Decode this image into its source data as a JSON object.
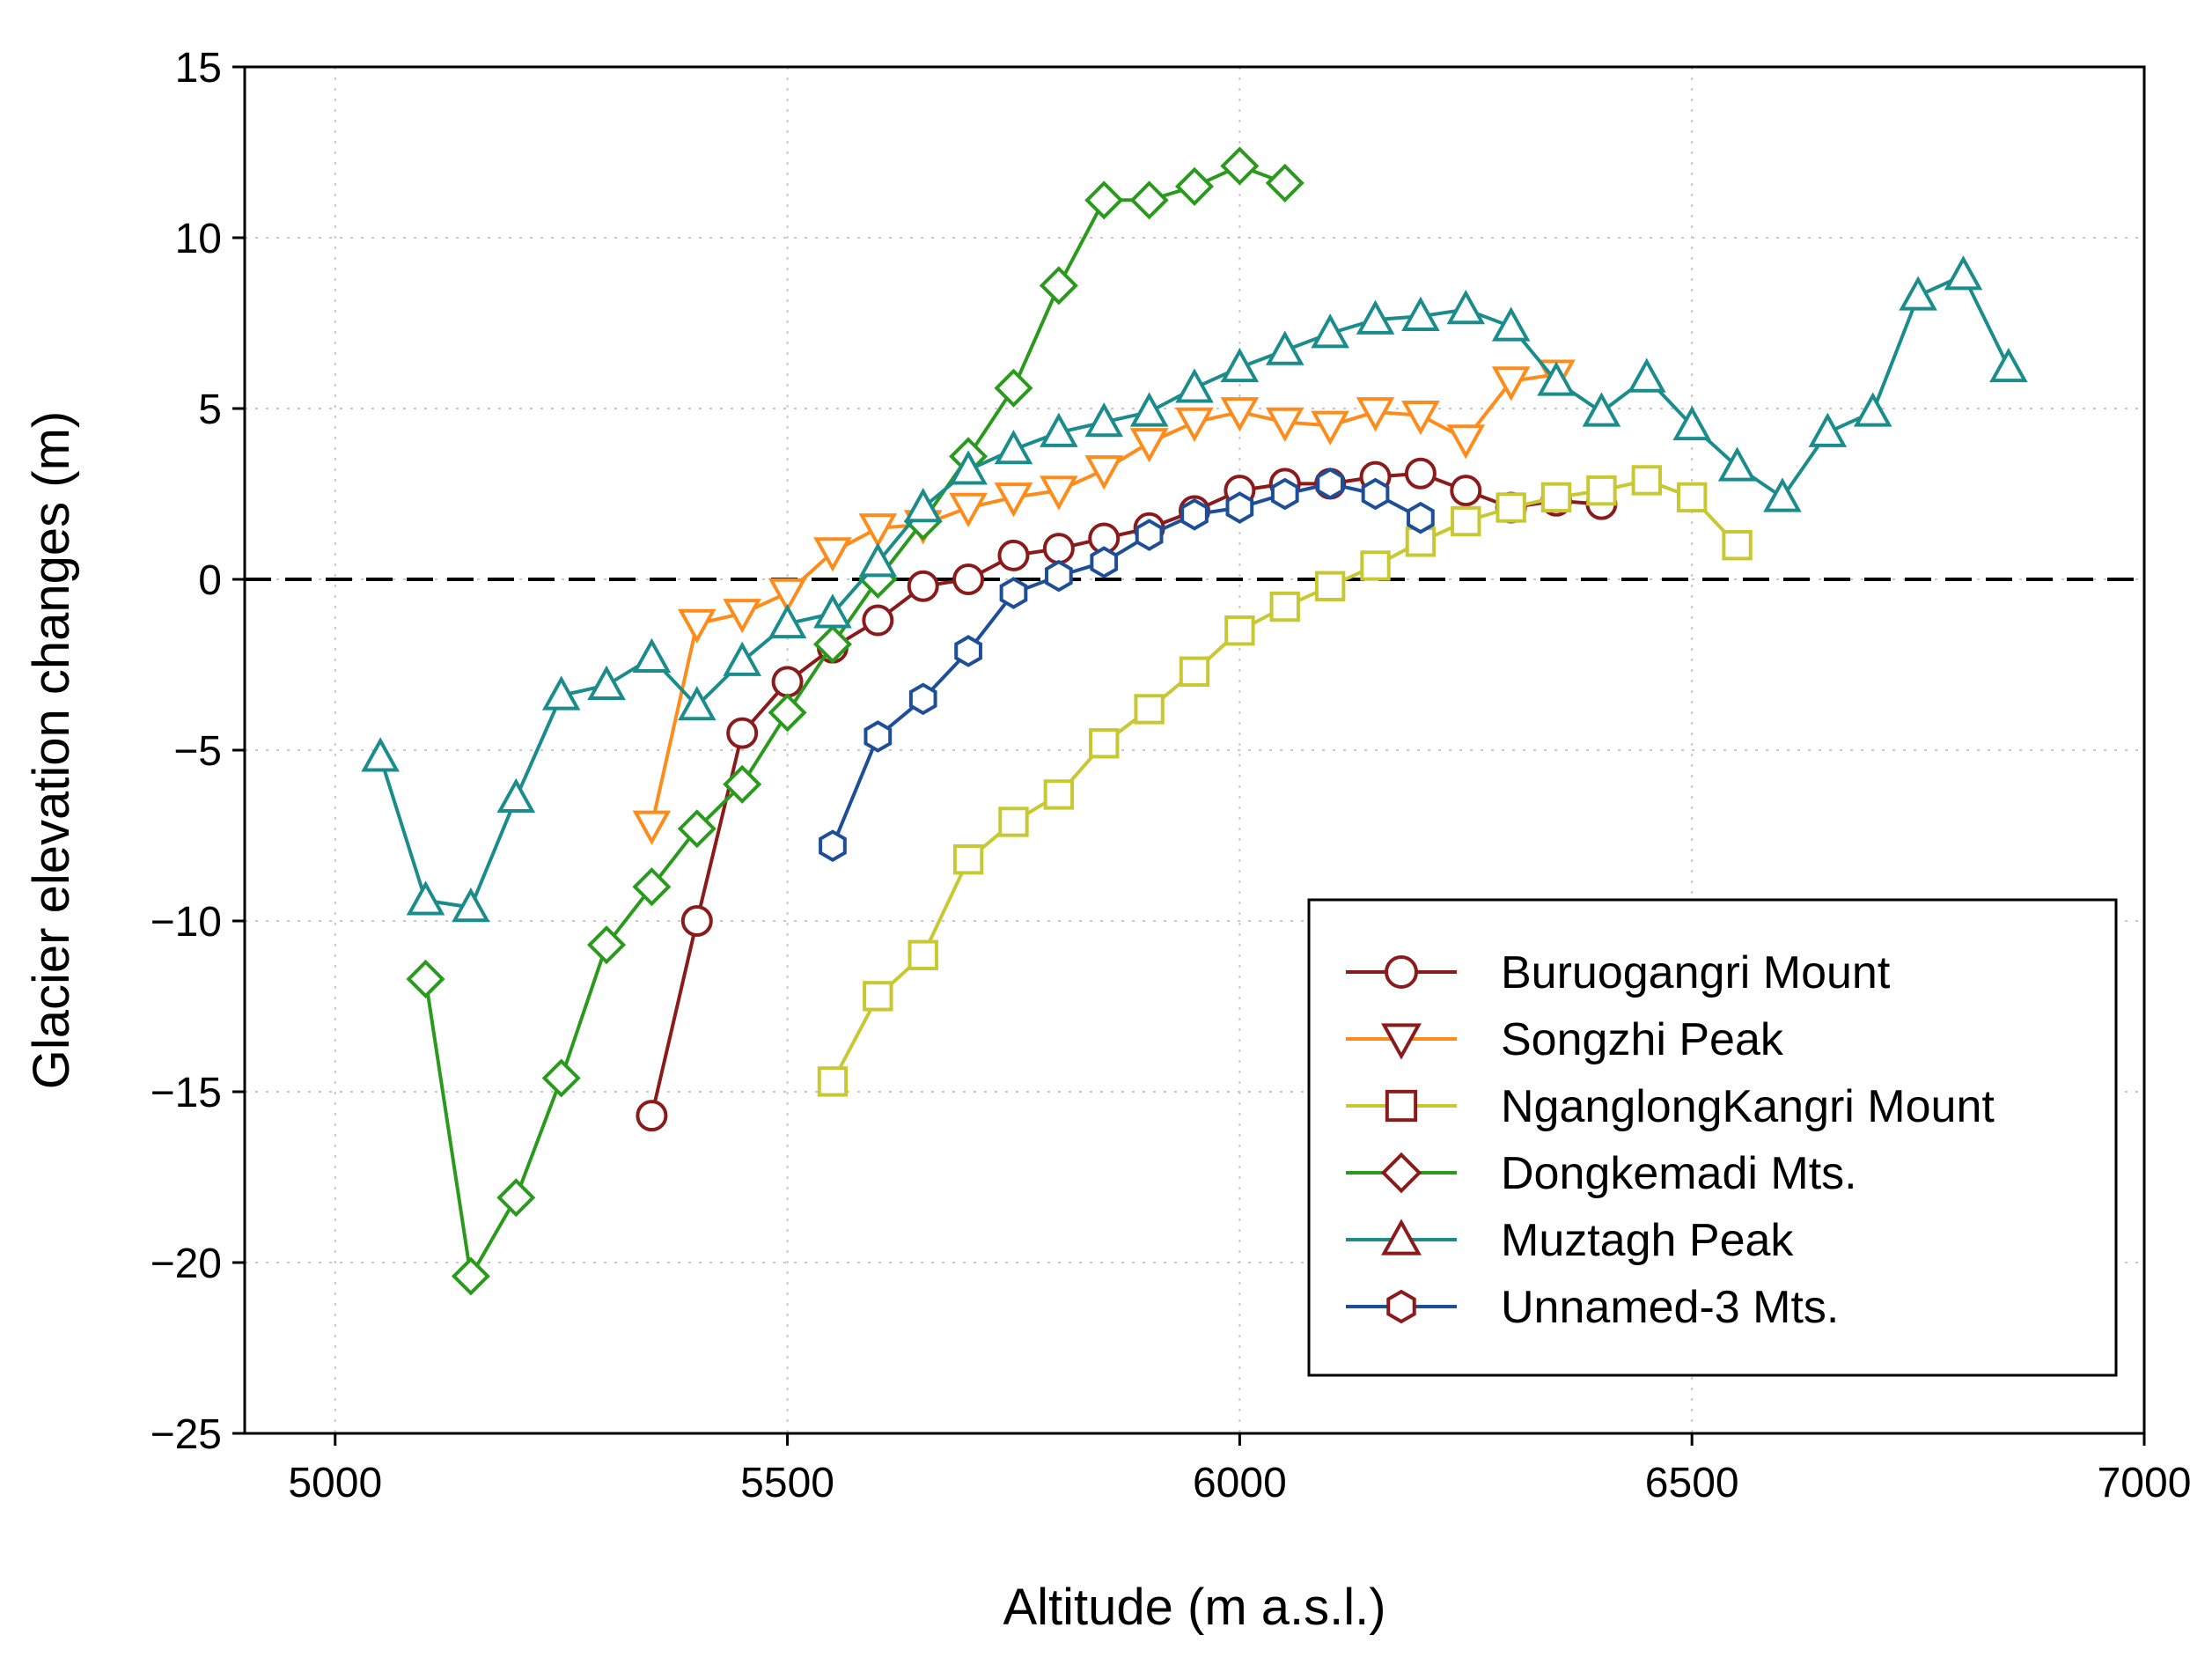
{
  "chart_data": {
    "type": "line",
    "title": "",
    "xlabel": "Altitude (m a.s.l.)",
    "ylabel": "Glacier elevation changes (m)",
    "xlim": [
      4900,
      7000
    ],
    "ylim": [
      -25,
      15
    ],
    "xticks": [
      5000,
      5500,
      6000,
      6500,
      7000
    ],
    "yticks": [
      -25,
      -20,
      -15,
      -10,
      -5,
      0,
      5,
      10,
      15
    ],
    "xtick_labels": [
      "5000",
      "5500",
      "6000",
      "6500",
      "7000"
    ],
    "ytick_labels": [
      "−25",
      "−20",
      "−15",
      "−10",
      "−5",
      "0",
      "5",
      "10",
      "15"
    ],
    "grid": true,
    "zero_line": "dashed",
    "legend_position": "bottom-right",
    "legend_marker_color": "#8b1a1a",
    "series": [
      {
        "name": "Buruogangri Mount",
        "color": "#8b1a1a",
        "marker": "circle",
        "x": [
          5350,
          5400,
          5450,
          5500,
          5550,
          5600,
          5650,
          5700,
          5750,
          5800,
          5850,
          5900,
          5950,
          6000,
          6050,
          6100,
          6150,
          6200,
          6250,
          6300,
          6350,
          6400
        ],
        "y": [
          -15.7,
          -10.0,
          -4.5,
          -3.0,
          -2.0,
          -1.2,
          -0.2,
          0.0,
          0.7,
          0.9,
          1.2,
          1.5,
          2.0,
          2.6,
          2.8,
          2.8,
          3.0,
          3.1,
          2.6,
          2.1,
          2.3,
          2.2
        ]
      },
      {
        "name": "Songzhi Peak",
        "color": "#ff8c1a",
        "marker": "triangle-down",
        "x": [
          5350,
          5400,
          5450,
          5500,
          5550,
          5600,
          5650,
          5700,
          5750,
          5800,
          5850,
          5900,
          5950,
          6000,
          6050,
          6100,
          6150,
          6200,
          6250,
          6300,
          6350
        ],
        "y": [
          -7.2,
          -1.3,
          -1.0,
          -0.4,
          0.8,
          1.5,
          1.6,
          2.1,
          2.4,
          2.6,
          3.2,
          4.0,
          4.6,
          4.9,
          4.6,
          4.5,
          4.9,
          4.8,
          4.1,
          5.8,
          6.0
        ]
      },
      {
        "name": "NganglongKangri Mount",
        "color": "#c8c832",
        "marker": "square",
        "x": [
          5550,
          5600,
          5650,
          5700,
          5750,
          5800,
          5850,
          5900,
          5950,
          6000,
          6050,
          6100,
          6150,
          6200,
          6250,
          6300,
          6350,
          6400,
          6450,
          6500,
          6550
        ],
        "y": [
          -14.7,
          -12.2,
          -11.0,
          -8.2,
          -7.1,
          -6.3,
          -4.8,
          -3.8,
          -2.7,
          -1.5,
          -0.8,
          -0.2,
          0.4,
          1.1,
          1.7,
          2.1,
          2.4,
          2.6,
          2.9,
          2.4,
          1.0
        ]
      },
      {
        "name": "Dongkemadi Mts.",
        "color": "#2a9a1c",
        "marker": "diamond",
        "x": [
          5100,
          5150,
          5200,
          5250,
          5300,
          5350,
          5400,
          5450,
          5500,
          5550,
          5600,
          5650,
          5700,
          5750,
          5800,
          5850,
          5900,
          5950,
          6000,
          6050
        ],
        "y": [
          -11.7,
          -20.4,
          -18.1,
          -14.6,
          -10.7,
          -9.0,
          -7.3,
          -6.0,
          -3.9,
          -1.9,
          0.0,
          1.7,
          3.6,
          5.6,
          8.6,
          11.1,
          11.1,
          11.5,
          12.1,
          11.6
        ]
      },
      {
        "name": "Muztagh Peak",
        "color": "#1a8c8c",
        "marker": "triangle-up",
        "x": [
          5050,
          5100,
          5150,
          5200,
          5250,
          5300,
          5350,
          5400,
          5450,
          5500,
          5550,
          5600,
          5650,
          5700,
          5750,
          5800,
          5850,
          5900,
          5950,
          6000,
          6050,
          6100,
          6150,
          6200,
          6250,
          6300,
          6350,
          6400,
          6450,
          6500,
          6550,
          6600,
          6650,
          6700,
          6750,
          6800,
          6850
        ],
        "y": [
          -5.2,
          -9.4,
          -9.6,
          -6.4,
          -3.4,
          -3.1,
          -2.3,
          -3.7,
          -2.4,
          -1.3,
          -1.0,
          0.5,
          2.1,
          3.2,
          3.8,
          4.3,
          4.6,
          4.9,
          5.6,
          6.2,
          6.7,
          7.2,
          7.6,
          7.7,
          7.9,
          7.4,
          5.8,
          4.9,
          5.9,
          4.5,
          3.3,
          2.4,
          4.3,
          4.9,
          8.3,
          8.9,
          6.2
        ]
      },
      {
        "name": "Unnamed-3 Mts.",
        "color": "#1c4e9a",
        "marker": "hexagon",
        "x": [
          5550,
          5600,
          5650,
          5700,
          5750,
          5800,
          5850,
          5900,
          5950,
          6000,
          6050,
          6100,
          6150,
          6200
        ],
        "y": [
          -7.8,
          -4.6,
          -3.5,
          -2.1,
          -0.4,
          0.1,
          0.5,
          1.3,
          1.9,
          2.1,
          2.5,
          2.8,
          2.5,
          1.8
        ]
      }
    ]
  }
}
